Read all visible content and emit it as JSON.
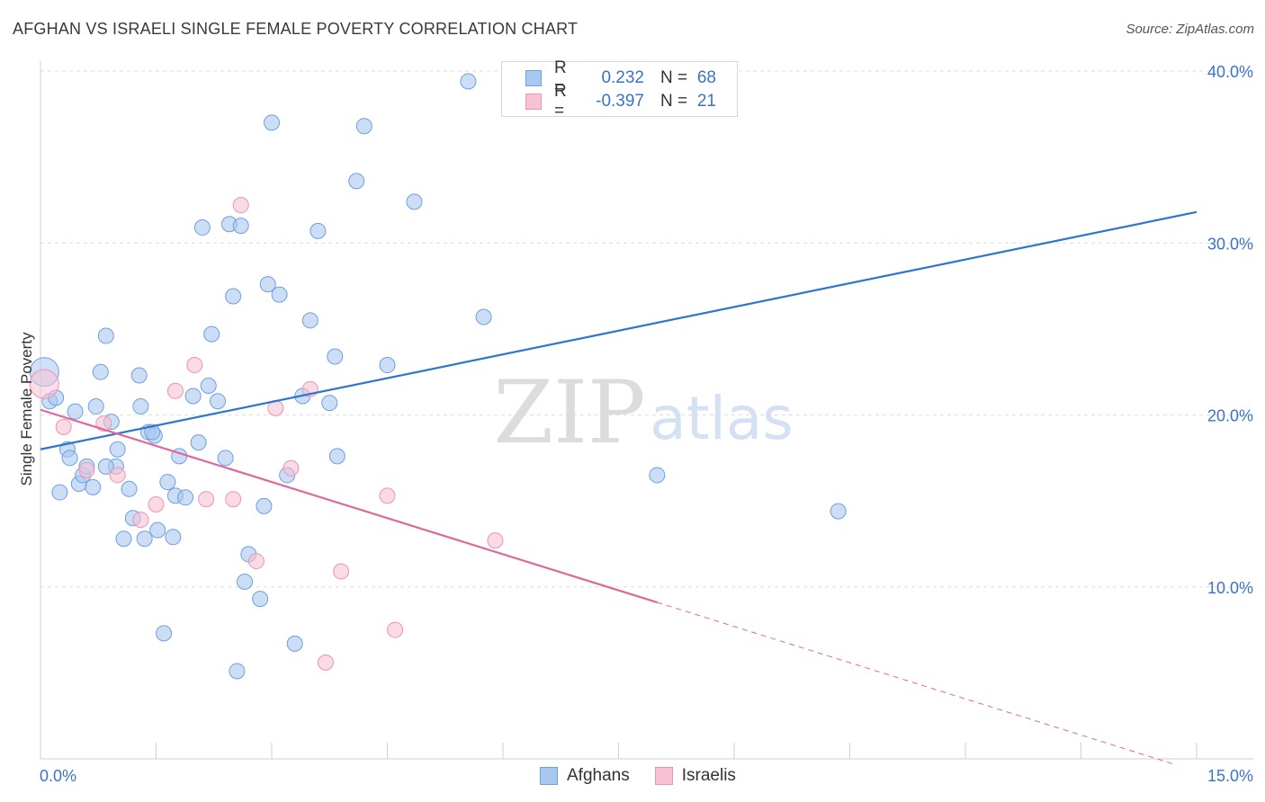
{
  "title": "AFGHAN VS ISRAELI SINGLE FEMALE POVERTY CORRELATION CHART",
  "source": "Source: ZipAtlas.com",
  "watermark": {
    "zip": "ZIP",
    "atlas": "atlas"
  },
  "legend": {
    "rows": [
      {
        "r_label": "R =",
        "r_value": "0.232",
        "n_label": "N =",
        "n_value": "68"
      },
      {
        "r_label": "R =",
        "r_value": "-0.397",
        "n_label": "N =",
        "n_value": "21"
      }
    ]
  },
  "bottom_legend": {
    "afghans": "Afghans",
    "israelis": "Israelis"
  },
  "colors": {
    "afghan_fill": "#a9c8f0",
    "afghan_stroke": "#6f9fe0",
    "afghan_line": "#2f74cf",
    "israeli_fill": "#f7c2d3",
    "israeli_stroke": "#ee93b1",
    "israeli_line": "#e0679a",
    "tick_text": "#3b73c4"
  },
  "chart_data": {
    "type": "scatter",
    "title": "AFGHAN VS ISRAELI SINGLE FEMALE POVERTY CORRELATION CHART",
    "xlabel": "",
    "ylabel": "Single Female Poverty",
    "xlim": [
      0,
      15
    ],
    "ylim": [
      0,
      40
    ],
    "x_tick_labels": [
      "0.0%",
      "15.0%"
    ],
    "y_ticks": [
      10,
      20,
      30,
      40
    ],
    "y_tick_labels": [
      "10.0%",
      "20.0%",
      "30.0%",
      "40.0%"
    ],
    "series": [
      {
        "name": "Afghans",
        "R": 0.232,
        "N": 68,
        "trend": {
          "x0": 0,
          "y0": 18.0,
          "x1": 15,
          "y1": 31.8
        },
        "points": [
          [
            0.05,
            22.5
          ],
          [
            0.12,
            20.8
          ],
          [
            0.2,
            21.0
          ],
          [
            0.25,
            15.5
          ],
          [
            0.35,
            18.0
          ],
          [
            0.38,
            17.5
          ],
          [
            0.45,
            20.2
          ],
          [
            0.5,
            16.0
          ],
          [
            0.55,
            16.5
          ],
          [
            0.6,
            17.0
          ],
          [
            0.68,
            15.8
          ],
          [
            0.72,
            20.5
          ],
          [
            0.78,
            22.5
          ],
          [
            0.85,
            24.6
          ],
          [
            0.92,
            19.6
          ],
          [
            0.98,
            17.0
          ],
          [
            1.0,
            18.0
          ],
          [
            1.08,
            12.8
          ],
          [
            1.15,
            15.7
          ],
          [
            1.2,
            14.0
          ],
          [
            1.28,
            22.3
          ],
          [
            1.3,
            20.5
          ],
          [
            1.35,
            12.8
          ],
          [
            1.4,
            19.0
          ],
          [
            1.48,
            18.8
          ],
          [
            1.52,
            13.3
          ],
          [
            1.6,
            7.3
          ],
          [
            1.65,
            16.1
          ],
          [
            1.72,
            12.9
          ],
          [
            1.75,
            15.3
          ],
          [
            1.8,
            17.6
          ],
          [
            1.88,
            15.2
          ],
          [
            1.98,
            21.1
          ],
          [
            2.05,
            18.4
          ],
          [
            2.1,
            30.9
          ],
          [
            2.18,
            21.7
          ],
          [
            2.22,
            24.7
          ],
          [
            2.3,
            20.8
          ],
          [
            2.4,
            17.5
          ],
          [
            2.45,
            31.1
          ],
          [
            2.5,
            26.9
          ],
          [
            2.55,
            5.1
          ],
          [
            2.6,
            31.0
          ],
          [
            2.65,
            10.3
          ],
          [
            2.7,
            11.9
          ],
          [
            2.85,
            9.3
          ],
          [
            2.9,
            14.7
          ],
          [
            2.95,
            27.6
          ],
          [
            3.0,
            37.0
          ],
          [
            3.1,
            27.0
          ],
          [
            3.2,
            16.5
          ],
          [
            3.3,
            6.7
          ],
          [
            3.4,
            21.1
          ],
          [
            3.5,
            25.5
          ],
          [
            3.6,
            30.7
          ],
          [
            3.75,
            20.7
          ],
          [
            3.82,
            23.4
          ],
          [
            3.85,
            17.6
          ],
          [
            4.1,
            33.6
          ],
          [
            4.2,
            36.8
          ],
          [
            4.5,
            22.9
          ],
          [
            4.85,
            32.4
          ],
          [
            5.55,
            39.4
          ],
          [
            5.75,
            25.7
          ],
          [
            8.0,
            16.5
          ],
          [
            10.35,
            14.4
          ],
          [
            0.85,
            17.0
          ],
          [
            1.45,
            19.0
          ]
        ]
      },
      {
        "name": "Israelis",
        "R": -0.397,
        "N": 21,
        "trend": {
          "x0": 0,
          "y0": 20.3,
          "x1": 8.0,
          "y1": 9.1
        },
        "trend_dashed_to": {
          "x": 14.7,
          "y": -0.3
        },
        "points": [
          [
            0.05,
            21.8
          ],
          [
            0.3,
            19.3
          ],
          [
            0.6,
            16.8
          ],
          [
            0.82,
            19.5
          ],
          [
            1.0,
            16.5
          ],
          [
            1.3,
            13.9
          ],
          [
            1.5,
            14.8
          ],
          [
            1.75,
            21.4
          ],
          [
            2.0,
            22.9
          ],
          [
            2.15,
            15.1
          ],
          [
            2.5,
            15.1
          ],
          [
            2.6,
            32.2
          ],
          [
            2.8,
            11.5
          ],
          [
            3.05,
            20.4
          ],
          [
            3.25,
            16.9
          ],
          [
            3.5,
            21.5
          ],
          [
            3.7,
            5.6
          ],
          [
            3.9,
            10.9
          ],
          [
            4.5,
            15.3
          ],
          [
            4.6,
            7.5
          ],
          [
            5.9,
            12.7
          ]
        ]
      }
    ]
  }
}
